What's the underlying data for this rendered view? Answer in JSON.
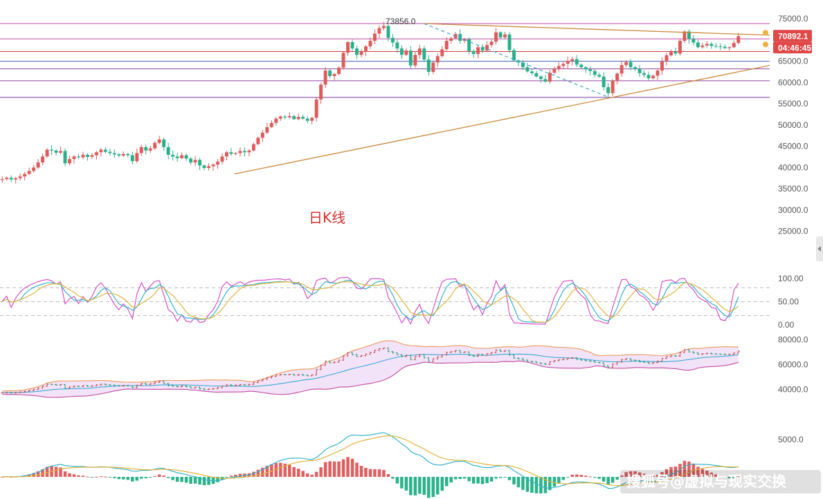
{
  "chart_data": {
    "type": "candlestick",
    "panel_title": "日K线",
    "peak_label": "73856.0",
    "price_tags": [
      {
        "value": "70892.1",
        "color": "#e04848"
      },
      {
        "value": "04:46:45",
        "color": "#e04848"
      }
    ],
    "price_axis": {
      "ticks": [
        "75000.0",
        "70000.0",
        "65000.0",
        "60000.0",
        "55000.0",
        "50000.0",
        "45000.0",
        "40000.0",
        "35000.0",
        "30000.0",
        "25000.0"
      ],
      "ylim": [
        23000,
        75500
      ]
    },
    "horizontal_levels": [
      {
        "value": 73856,
        "color": "#c04aa0"
      },
      {
        "value": 70250,
        "color": "#c04aa0"
      },
      {
        "value": 67300,
        "color": "#d03838"
      },
      {
        "value": 65000,
        "color": "#4060b8"
      },
      {
        "value": 63200,
        "color": "#9040a0"
      },
      {
        "value": 60400,
        "color": "#9040a0"
      },
      {
        "value": 56500,
        "color": "#7a3a9a"
      }
    ],
    "trendlines": [
      {
        "from": [
          0.285,
          38500
        ],
        "to": [
          0.94,
          64200
        ],
        "color": "#c8883a"
      },
      {
        "from": [
          0.515,
          73856
        ],
        "to": [
          0.94,
          71100
        ],
        "color": "#c8883a"
      },
      {
        "from": [
          0.515,
          73856
        ],
        "to": [
          0.74,
          56500
        ],
        "color": "#4aa8c8",
        "dashed": true
      }
    ],
    "closes": [
      37300,
      37600,
      37200,
      37500,
      37900,
      38500,
      39200,
      40000,
      41200,
      42600,
      44200,
      44000,
      43500,
      43900,
      41000,
      42000,
      42600,
      42400,
      43000,
      42500,
      42900,
      43600,
      44200,
      43700,
      43400,
      43100,
      42800,
      43200,
      42900,
      41500,
      43400,
      44800,
      44000,
      44500,
      45800,
      46600,
      44800,
      43000,
      42600,
      42200,
      42900,
      42100,
      41200,
      41800,
      40500,
      39900,
      40300,
      40700,
      41400,
      42600,
      43600,
      43200,
      43400,
      43900,
      43600,
      44000,
      45500,
      47000,
      48200,
      49500,
      50500,
      51500,
      52000,
      51800,
      52100,
      51400,
      51900,
      51500,
      51000,
      51700,
      56000,
      59500,
      62800,
      61500,
      62000,
      63500,
      67000,
      69500,
      68000,
      66500,
      67200,
      68500,
      69800,
      71500,
      72800,
      73300,
      70500,
      69400,
      68000,
      66500,
      67500,
      64000,
      66500,
      68000,
      65400,
      62500,
      64700,
      66200,
      67800,
      69800,
      70400,
      71400,
      69800,
      70200,
      67400,
      66700,
      68300,
      67500,
      68800,
      69600,
      71800,
      70600,
      71300,
      67600,
      65200,
      64700,
      63600,
      62600,
      62200,
      61400,
      60800,
      60200,
      62300,
      63200,
      63900,
      64400,
      65100,
      65500,
      64200,
      63600,
      63100,
      62700,
      61800,
      61400,
      58900,
      57500,
      60400,
      62100,
      64100,
      64800,
      63600,
      63200,
      62200,
      61800,
      61000,
      61600,
      62800,
      65000,
      66400,
      67200,
      66800,
      69800,
      72000,
      70200,
      69400,
      68300,
      68700,
      69100,
      68600,
      68500,
      68400,
      68100,
      68300,
      69300,
      70900
    ],
    "ohlc_note": "Daily candles, open = previous close",
    "oscillator": {
      "axis_ticks": [
        "100.00",
        "50.00",
        "0.00"
      ],
      "levels": [
        80,
        50,
        20
      ],
      "series_colors": [
        "#d64fc8",
        "#33b2c8",
        "#e0b23a"
      ]
    },
    "bollinger": {
      "axis_ticks": [
        "80000.0",
        "60000.0",
        "40000.0"
      ],
      "ylim": [
        28000,
        82000
      ],
      "colors": {
        "upper": "#e89a5a",
        "mid": "#3aaad0",
        "lower": "#c04aa0",
        "fill": "#f3e3f8"
      }
    },
    "macd": {
      "axis_ticks": [
        "5000.0"
      ],
      "colors": {
        "dif": "#33b2c8",
        "dea": "#e0b23a",
        "hist_pos": "#e06060",
        "hist_neg": "#2bb38a"
      }
    }
  },
  "watermark": "搜狐号@虚拟与现实交换"
}
